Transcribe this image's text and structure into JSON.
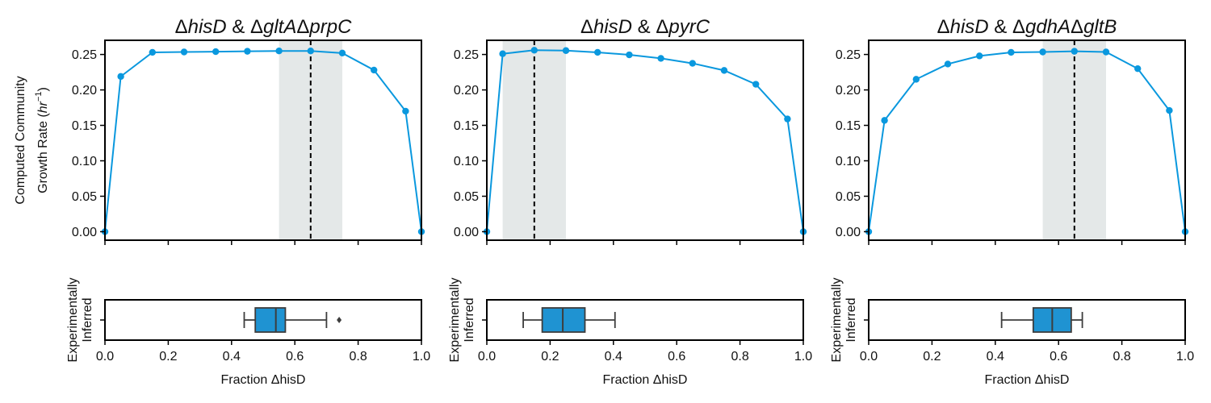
{
  "colors": {
    "line": "#0a98de",
    "box": "#1f93d2",
    "shade": "#e4e8e8",
    "median": "#111111",
    "axis": "#000000"
  },
  "figure": {
    "ylabel_line1": "Computed Community",
    "ylabel_line2": "Growth Rate (",
    "ylabel_unit": "hr",
    "ylabel_sup": "−1",
    "ylabel_close": ")",
    "box_ylabel_line1": "Experimentally",
    "box_ylabel_line2": "Inferred",
    "xlabel": "Fraction ΔhisD"
  },
  "chart_data": [
    {
      "type": "line",
      "title_parts": [
        {
          "text": "Δ",
          "italic": false
        },
        {
          "text": "hisD",
          "italic": true
        },
        {
          "text": " & Δ",
          "italic": false
        },
        {
          "text": "gltA",
          "italic": true
        },
        {
          "text": "Δ",
          "italic": false
        },
        {
          "text": "prpC",
          "italic": true
        }
      ],
      "x": [
        0.0,
        0.05,
        0.15,
        0.25,
        0.35,
        0.45,
        0.55,
        0.65,
        0.75,
        0.85,
        0.95,
        1.0
      ],
      "y": [
        0.0,
        0.219,
        0.253,
        0.2535,
        0.254,
        0.2545,
        0.255,
        0.255,
        0.252,
        0.228,
        0.17,
        0.0
      ],
      "xlim": [
        0,
        1
      ],
      "ylim": [
        -0.012,
        0.27
      ],
      "yticks": [
        "0.00",
        "0.05",
        "0.10",
        "0.15",
        "0.20",
        "0.25"
      ],
      "xticks": [
        "0.0",
        "0.2",
        "0.4",
        "0.6",
        "0.8",
        "1.0"
      ],
      "shade_range": [
        0.55,
        0.75
      ],
      "optimum_x": 0.65,
      "box": {
        "whisker_low": 0.44,
        "q1": 0.475,
        "median": 0.54,
        "q3": 0.57,
        "whisker_high": 0.7,
        "outliers": [
          0.74
        ]
      }
    },
    {
      "type": "line",
      "title_parts": [
        {
          "text": "Δ",
          "italic": false
        },
        {
          "text": "hisD",
          "italic": true
        },
        {
          "text": " & Δ",
          "italic": false
        },
        {
          "text": "pyrC",
          "italic": true
        }
      ],
      "x": [
        0.0,
        0.05,
        0.15,
        0.25,
        0.35,
        0.45,
        0.55,
        0.65,
        0.75,
        0.85,
        0.95,
        1.0
      ],
      "y": [
        0.0,
        0.251,
        0.256,
        0.2555,
        0.253,
        0.2495,
        0.2445,
        0.2375,
        0.2275,
        0.208,
        0.159,
        0.0
      ],
      "xlim": [
        0,
        1
      ],
      "ylim": [
        -0.012,
        0.27
      ],
      "yticks": [
        "0.00",
        "0.05",
        "0.10",
        "0.15",
        "0.20",
        "0.25"
      ],
      "xticks": [
        "0.0",
        "0.2",
        "0.4",
        "0.6",
        "0.8",
        "1.0"
      ],
      "shade_range": [
        0.05,
        0.25
      ],
      "optimum_x": 0.15,
      "box": {
        "whisker_low": 0.115,
        "q1": 0.175,
        "median": 0.24,
        "q3": 0.31,
        "whisker_high": 0.405,
        "outliers": []
      }
    },
    {
      "type": "line",
      "title_parts": [
        {
          "text": "Δ",
          "italic": false
        },
        {
          "text": "hisD",
          "italic": true
        },
        {
          "text": " & Δ",
          "italic": false
        },
        {
          "text": "gdhA",
          "italic": true
        },
        {
          "text": "Δ",
          "italic": false
        },
        {
          "text": "gltB",
          "italic": true
        }
      ],
      "x": [
        0.0,
        0.05,
        0.15,
        0.25,
        0.35,
        0.45,
        0.55,
        0.65,
        0.75,
        0.85,
        0.95,
        1.0
      ],
      "y": [
        0.0,
        0.157,
        0.215,
        0.2365,
        0.248,
        0.253,
        0.2535,
        0.2545,
        0.2535,
        0.23,
        0.171,
        0.0
      ],
      "xlim": [
        0,
        1
      ],
      "ylim": [
        -0.012,
        0.27
      ],
      "yticks": [
        "0.00",
        "0.05",
        "0.10",
        "0.15",
        "0.20",
        "0.25"
      ],
      "xticks": [
        "0.0",
        "0.2",
        "0.4",
        "0.6",
        "0.8",
        "1.0"
      ],
      "shade_range": [
        0.55,
        0.75
      ],
      "optimum_x": 0.65,
      "box": {
        "whisker_low": 0.42,
        "q1": 0.52,
        "median": 0.58,
        "q3": 0.64,
        "whisker_high": 0.675,
        "outliers": []
      }
    }
  ]
}
